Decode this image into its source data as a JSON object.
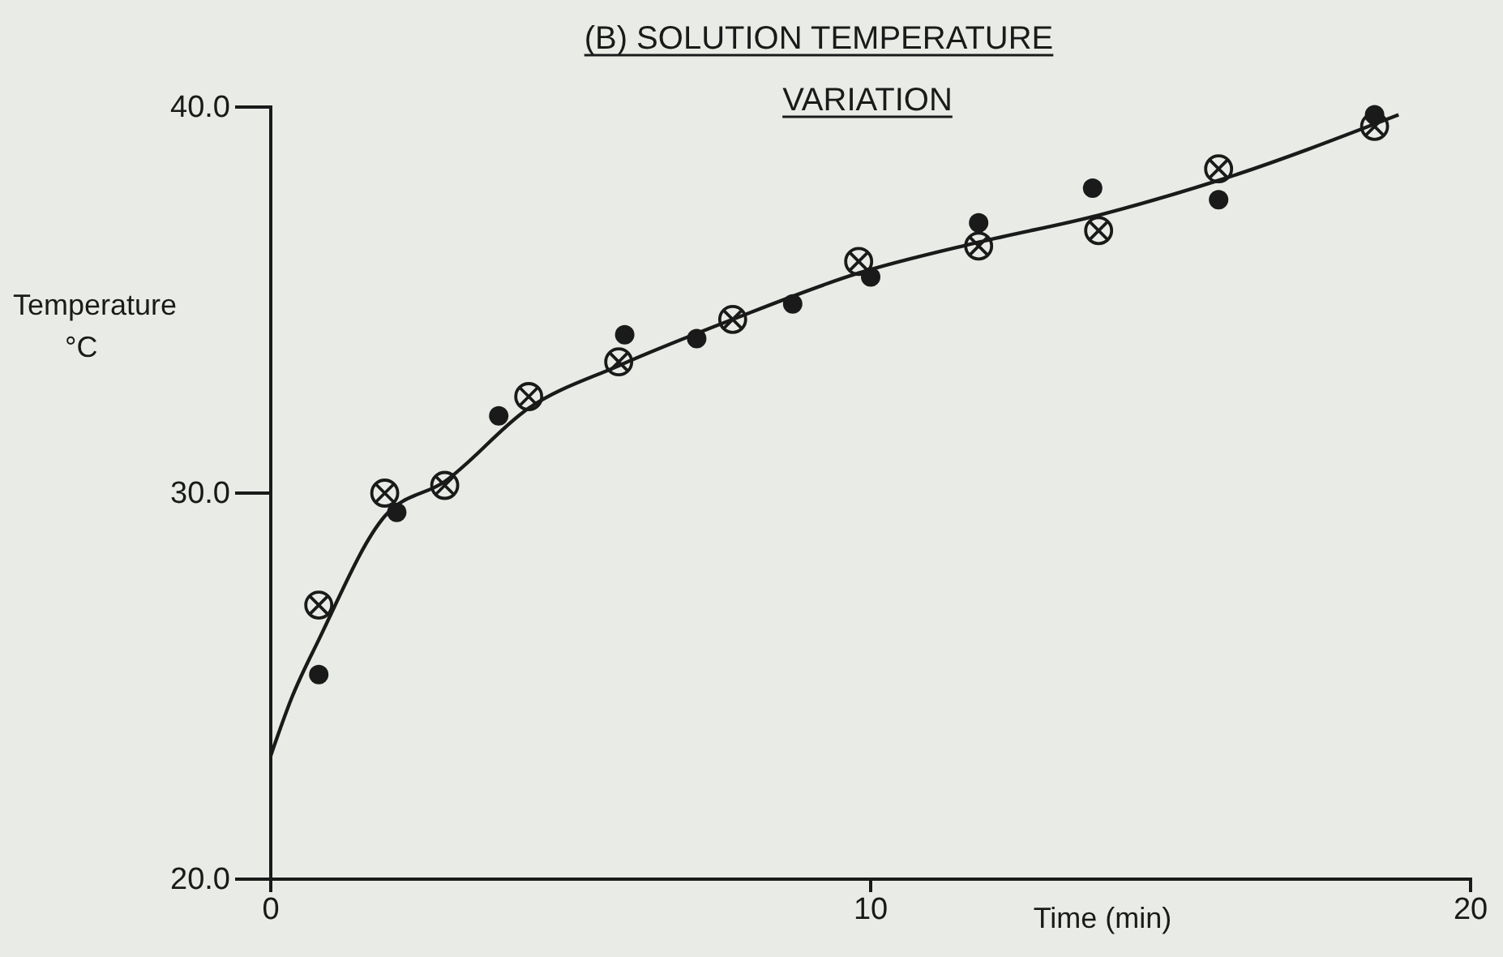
{
  "chart_data": {
    "type": "scatter",
    "title": "(B) SOLUTION TEMPERATURE VARIATION",
    "xlabel": "Time (min)",
    "ylabel": "Temperature °C",
    "xlim": [
      0,
      20
    ],
    "xticks": [
      0,
      10,
      20
    ],
    "ylim": [
      20,
      40
    ],
    "yticks": [
      {
        "value": 20,
        "label": "20.0"
      },
      {
        "value": 30,
        "label": "30.0"
      },
      {
        "value": 40,
        "label": "40.0"
      }
    ],
    "grid": false,
    "series": [
      {
        "color": "#1a1a1a",
        "marker": "circle",
        "x": [
          0.8,
          2.1,
          3.8,
          5.9,
          7.1,
          8.7,
          10.0,
          11.8,
          13.7,
          15.8,
          18.4
        ],
        "values": [
          25.3,
          29.5,
          32.0,
          34.1,
          34.0,
          34.9,
          35.6,
          37.0,
          37.9,
          37.6,
          39.8
        ]
      },
      {
        "color": "#1a1a1a",
        "marker": "cross",
        "x": [
          0.8,
          1.9,
          2.9,
          4.3,
          5.8,
          7.7,
          9.8,
          11.8,
          13.8,
          15.8,
          18.4
        ],
        "values": [
          27.1,
          30.0,
          30.2,
          32.5,
          33.4,
          34.5,
          36.0,
          36.4,
          36.8,
          38.4,
          39.5
        ]
      },
      {
        "type": "line",
        "color": "#1a1a1a",
        "marker": "none",
        "line_style": "solid",
        "x": [
          0,
          0.35,
          0.8,
          1.9,
          2.9,
          4.3,
          5.8,
          7.7,
          9.8,
          11.8,
          13.8,
          15.8,
          18.8
        ],
        "values": [
          23.2,
          24.7,
          26.2,
          29.4,
          30.3,
          32.2,
          33.3,
          34.5,
          35.7,
          36.5,
          37.2,
          38.1,
          39.8
        ]
      }
    ]
  }
}
